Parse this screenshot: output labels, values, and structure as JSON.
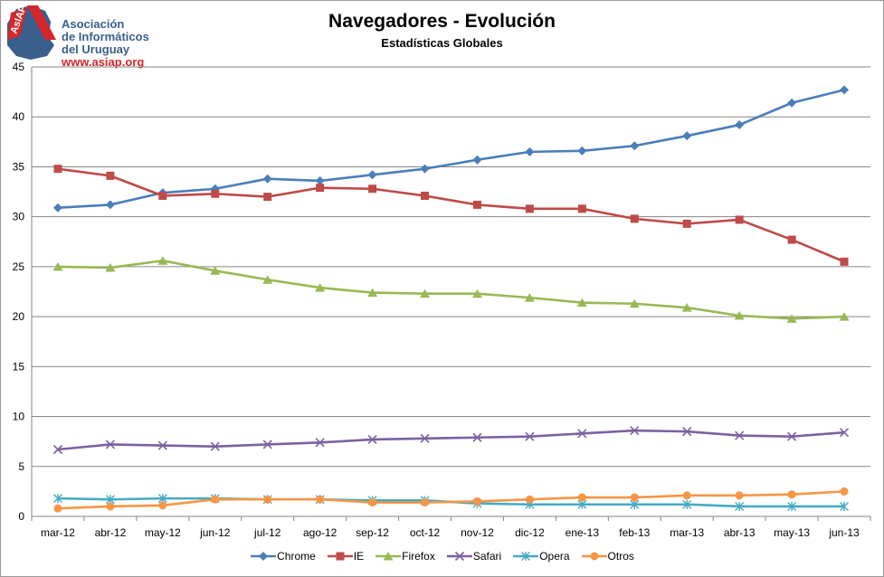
{
  "logo": {
    "badge": "AsIAP",
    "line1": "Asociación",
    "line2": "de Informáticos",
    "line3": "del Uruguay",
    "url": "www.asiap.org"
  },
  "chart_data": {
    "type": "line",
    "title": "Navegadores - Evolución",
    "subtitle": "Estadísticas Globales",
    "xlabel": "",
    "ylabel": "",
    "ylim": [
      0,
      45
    ],
    "yticks": [
      0,
      5,
      10,
      15,
      20,
      25,
      30,
      35,
      40,
      45
    ],
    "grid": true,
    "legend_position": "bottom",
    "categories": [
      "mar-12",
      "abr-12",
      "may-12",
      "jun-12",
      "jul-12",
      "ago-12",
      "sep-12",
      "oct-12",
      "nov-12",
      "dic-12",
      "ene-13",
      "feb-13",
      "mar-13",
      "abr-13",
      "may-13",
      "jun-13"
    ],
    "series": [
      {
        "name": "Chrome",
        "color": "#4a7ebb",
        "marker": "diamond",
        "values": [
          30.9,
          31.2,
          32.4,
          32.8,
          33.8,
          33.6,
          34.2,
          34.8,
          35.7,
          36.5,
          36.6,
          37.1,
          38.1,
          39.2,
          41.4,
          42.7
        ]
      },
      {
        "name": "IE",
        "color": "#be4b48",
        "marker": "square",
        "values": [
          34.8,
          34.1,
          32.1,
          32.3,
          32.0,
          32.9,
          32.8,
          32.1,
          31.2,
          30.8,
          30.8,
          29.8,
          29.3,
          29.7,
          27.7,
          25.5
        ]
      },
      {
        "name": "Firefox",
        "color": "#98b954",
        "marker": "triangle",
        "values": [
          25.0,
          24.9,
          25.6,
          24.6,
          23.7,
          22.9,
          22.4,
          22.3,
          22.3,
          21.9,
          21.4,
          21.3,
          20.9,
          20.1,
          19.8,
          20.0
        ]
      },
      {
        "name": "Safari",
        "color": "#7d60a0",
        "marker": "x",
        "values": [
          6.7,
          7.2,
          7.1,
          7.0,
          7.2,
          7.4,
          7.7,
          7.8,
          7.9,
          8.0,
          8.3,
          8.6,
          8.5,
          8.1,
          8.0,
          8.4
        ]
      },
      {
        "name": "Opera",
        "color": "#46aac5",
        "marker": "star",
        "values": [
          1.8,
          1.7,
          1.8,
          1.8,
          1.7,
          1.7,
          1.6,
          1.6,
          1.3,
          1.2,
          1.2,
          1.2,
          1.2,
          1.0,
          1.0,
          1.0
        ]
      },
      {
        "name": "Otros",
        "color": "#f79646",
        "marker": "circle",
        "values": [
          0.8,
          1.0,
          1.1,
          1.7,
          1.7,
          1.7,
          1.4,
          1.4,
          1.5,
          1.7,
          1.9,
          1.9,
          2.1,
          2.1,
          2.2,
          2.5
        ]
      }
    ]
  }
}
